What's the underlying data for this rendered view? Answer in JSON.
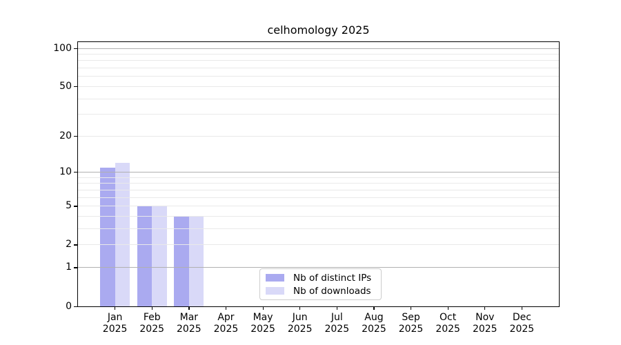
{
  "chart_data": {
    "type": "bar",
    "title": "celhomology 2025",
    "year": "2025",
    "months": [
      "Jan",
      "Feb",
      "Mar",
      "Apr",
      "May",
      "Jun",
      "Jul",
      "Aug",
      "Sep",
      "Oct",
      "Nov",
      "Dec"
    ],
    "categories": [
      "Jan 2025",
      "Feb 2025",
      "Mar 2025",
      "Apr 2025",
      "May 2025",
      "Jun 2025",
      "Jul 2025",
      "Aug 2025",
      "Sep 2025",
      "Oct 2025",
      "Nov 2025",
      "Dec 2025"
    ],
    "series": [
      {
        "name": "Nb of distinct IPs",
        "color": "#aaaaf0",
        "values": [
          11,
          5,
          4,
          0,
          0,
          0,
          0,
          0,
          0,
          0,
          0,
          0
        ]
      },
      {
        "name": "Nb of downloads",
        "color": "#d9d9f8",
        "values": [
          12,
          5,
          4,
          0,
          0,
          0,
          0,
          0,
          0,
          0,
          0,
          0
        ]
      }
    ],
    "scale": "log10(1+y)",
    "ylim": [
      0,
      112
    ],
    "y_tick_labels": [
      0,
      1,
      2,
      5,
      10,
      20,
      50,
      100
    ],
    "y_grid_major": [
      1,
      10,
      100
    ],
    "y_grid_minor": [
      2,
      3,
      4,
      5,
      6,
      7,
      8,
      9,
      20,
      30,
      40,
      50,
      60,
      70,
      80,
      90
    ],
    "xlabel": "",
    "ylabel": "",
    "grid": true,
    "legend_position": "lower center"
  },
  "colors": {
    "bar_ips": "#aaaaf0",
    "bar_downloads": "#d9d9f8",
    "grid_major": "#b0b0b0",
    "grid_minor": "#e9e9e9",
    "spine": "#000000",
    "legend_border": "#cccccc",
    "background": "#ffffff",
    "text": "#000000"
  }
}
